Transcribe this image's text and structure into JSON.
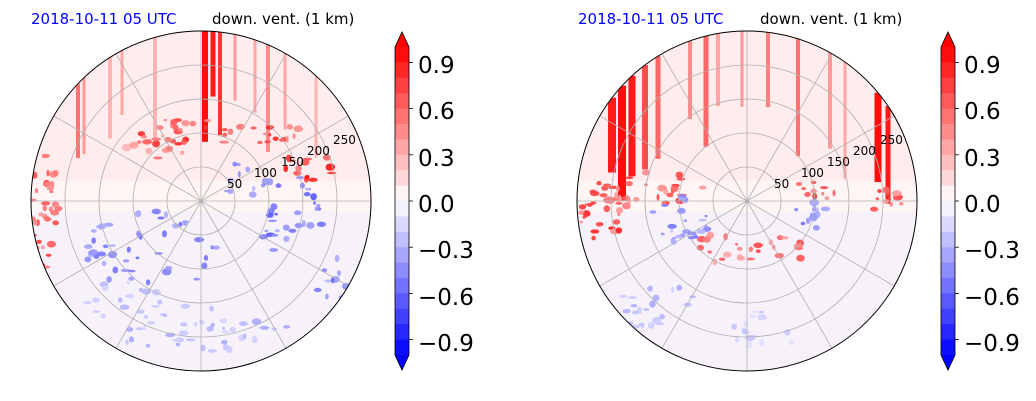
{
  "chart_data": [
    {
      "type": "heatmap",
      "projection": "polar",
      "title": "2018-10-11 05 UTC",
      "subtitle": "down. vent. (1 km)",
      "radial_ticks": [
        "50",
        "100",
        "150",
        "200",
        "250"
      ],
      "colorbar": {
        "ticks": [
          "0.9",
          "0.6",
          "0.3",
          "0.0",
          "−0.3",
          "−0.6",
          "−0.9"
        ],
        "range": [
          -1.0,
          1.0
        ],
        "extend": "both",
        "colormap": "bwr",
        "levels": 20
      },
      "colors": {
        "positive": "#ff0000",
        "negative": "#0000ff",
        "neutral": "#ffffff"
      },
      "grid": true
    },
    {
      "type": "heatmap",
      "projection": "polar",
      "title": "2018-10-11 05 UTC",
      "subtitle": "down. vent. (1 km)",
      "radial_ticks": [
        "50",
        "100",
        "150",
        "200",
        "250"
      ],
      "colorbar": {
        "ticks": [
          "0.9",
          "0.6",
          "0.3",
          "0.0",
          "−0.3",
          "−0.6",
          "−0.9"
        ],
        "range": [
          -1.0,
          1.0
        ],
        "extend": "both",
        "colormap": "bwr",
        "levels": 20
      },
      "colors": {
        "positive": "#ff0000",
        "negative": "#0000ff",
        "neutral": "#ffffff"
      },
      "grid": true
    }
  ]
}
